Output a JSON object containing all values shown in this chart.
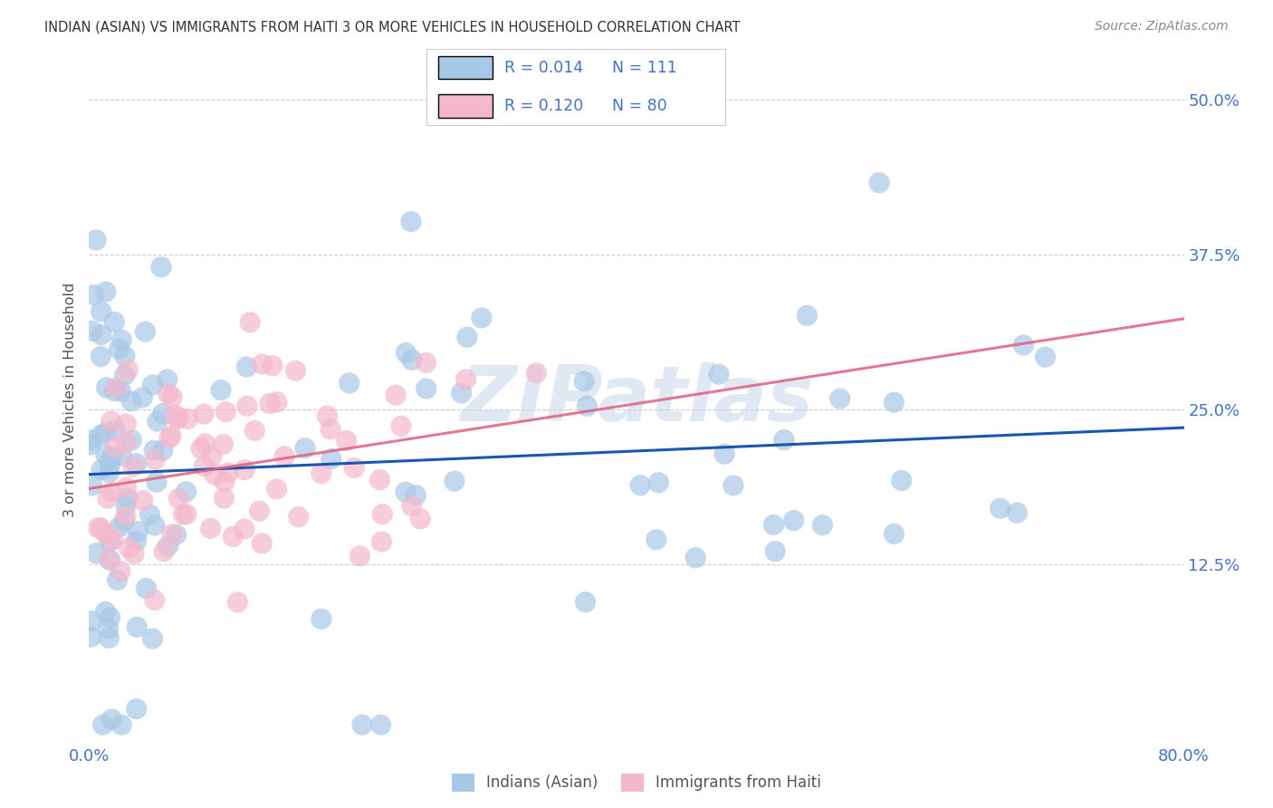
{
  "title": "INDIAN (ASIAN) VS IMMIGRANTS FROM HAITI 3 OR MORE VEHICLES IN HOUSEHOLD CORRELATION CHART",
  "source": "Source: ZipAtlas.com",
  "ylabel": "3 or more Vehicles in Household",
  "ytick_values": [
    0.125,
    0.25,
    0.375,
    0.5
  ],
  "ytick_labels": [
    "12.5%",
    "25.0%",
    "37.5%",
    "50.0%"
  ],
  "xlim": [
    0.0,
    0.8
  ],
  "ylim": [
    -0.02,
    0.535
  ],
  "legend1_label": "Indians (Asian)",
  "legend2_label": "Immigrants from Haiti",
  "R1": "0.014",
  "N1": "111",
  "R2": "0.120",
  "N2": "80",
  "color_blue": "#a8c8e8",
  "color_pink": "#f4b8cc",
  "line_blue": "#1a56b0",
  "line_pink": "#e06080",
  "title_color": "#333333",
  "axis_color": "#4472c4",
  "watermark": "ZIPatlas",
  "background_color": "#ffffff",
  "grid_color": "#cccccc"
}
